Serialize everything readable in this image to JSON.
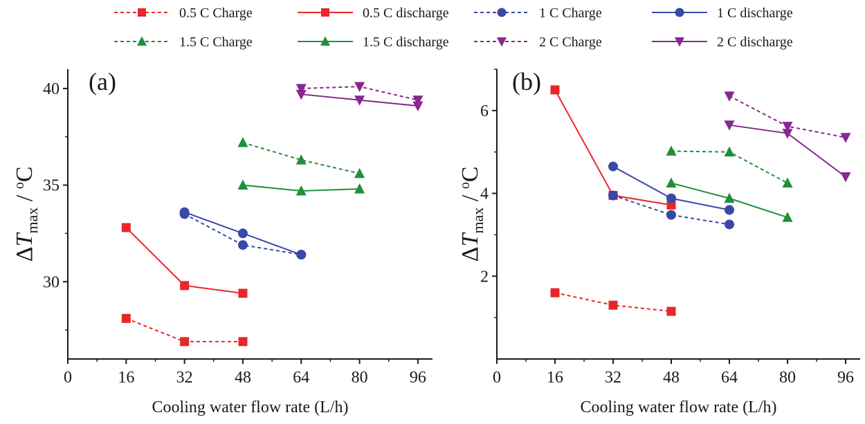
{
  "chart_data": [
    {
      "type": "line",
      "panel_label": "(a)",
      "xlabel": "Cooling water flow rate (L/h)",
      "ylabel": {
        "delta": "Δ",
        "symbol": "T",
        "subscript": "max",
        "sep": " / ",
        "degree": "o",
        "unit": "C"
      },
      "xlim": [
        0,
        100
      ],
      "ylim": [
        26,
        41
      ],
      "xticks": [
        0,
        16,
        32,
        48,
        64,
        80,
        96
      ],
      "xtick_labels": [
        "0",
        "16",
        "32",
        "48",
        "64",
        "80",
        "96"
      ],
      "yticks": [
        30,
        35,
        40
      ],
      "ytick_labels": [
        "30",
        "35",
        "40"
      ],
      "grid": false,
      "series": [
        {
          "name": "0.5 C Charge",
          "color": "#e8262b",
          "dash": true,
          "marker": "square",
          "x": [
            16,
            32,
            48
          ],
          "y": [
            28.1,
            26.9,
            26.9
          ]
        },
        {
          "name": "0.5 C discharge",
          "color": "#e8262b",
          "dash": false,
          "marker": "square",
          "x": [
            16,
            32,
            48
          ],
          "y": [
            32.8,
            29.8,
            29.4
          ]
        },
        {
          "name": "1 C Charge",
          "color": "#3a48a8",
          "dash": true,
          "marker": "circle",
          "x": [
            32,
            48,
            64
          ],
          "y": [
            33.5,
            31.9,
            31.4
          ]
        },
        {
          "name": "1 C discharge",
          "color": "#3a48a8",
          "dash": false,
          "marker": "circle",
          "x": [
            32,
            48,
            64
          ],
          "y": [
            33.6,
            32.5,
            31.4
          ]
        },
        {
          "name": "1.5 C Charge",
          "color": "#1f8f3a",
          "dash": true,
          "marker": "triangle-up",
          "x": [
            48,
            64,
            80
          ],
          "y": [
            37.2,
            36.3,
            35.6
          ]
        },
        {
          "name": "1.5 C discharge",
          "color": "#1f8f3a",
          "dash": false,
          "marker": "triangle-up",
          "x": [
            48,
            64,
            80
          ],
          "y": [
            35.0,
            34.7,
            34.8
          ]
        },
        {
          "name": "2 C Charge",
          "color": "#86288f",
          "dash": true,
          "marker": "triangle-down",
          "x": [
            64,
            80,
            96
          ],
          "y": [
            40.0,
            40.1,
            39.4
          ]
        },
        {
          "name": "2 C discharge",
          "color": "#86288f",
          "dash": false,
          "marker": "triangle-down",
          "x": [
            64,
            80,
            96
          ],
          "y": [
            39.7,
            39.4,
            39.1
          ]
        }
      ]
    },
    {
      "type": "line",
      "panel_label": "(b)",
      "xlabel": "Cooling water flow rate (L/h)",
      "ylabel": {
        "delta": "Δ",
        "symbol": "T",
        "subscript": "max",
        "sep": " / ",
        "degree": "o",
        "unit": "C"
      },
      "xlim": [
        0,
        100
      ],
      "ylim": [
        0,
        7
      ],
      "xticks": [
        0,
        16,
        32,
        48,
        64,
        80,
        96
      ],
      "xtick_labels": [
        "0",
        "16",
        "32",
        "48",
        "64",
        "80",
        "96"
      ],
      "yticks": [
        2,
        4,
        6
      ],
      "ytick_labels": [
        "2",
        "4",
        "6"
      ],
      "grid": false,
      "series": [
        {
          "name": "0.5 C Charge",
          "color": "#e8262b",
          "dash": true,
          "marker": "square",
          "x": [
            16,
            32,
            48
          ],
          "y": [
            1.6,
            1.3,
            1.15
          ]
        },
        {
          "name": "0.5 C discharge",
          "color": "#e8262b",
          "dash": false,
          "marker": "square",
          "x": [
            16,
            32,
            48
          ],
          "y": [
            6.5,
            3.95,
            3.72
          ]
        },
        {
          "name": "1 C Charge",
          "color": "#3a48a8",
          "dash": true,
          "marker": "circle",
          "x": [
            32,
            48,
            64
          ],
          "y": [
            3.95,
            3.48,
            3.25
          ]
        },
        {
          "name": "1 C discharge",
          "color": "#3a48a8",
          "dash": false,
          "marker": "circle",
          "x": [
            32,
            48,
            64
          ],
          "y": [
            4.65,
            3.88,
            3.6
          ]
        },
        {
          "name": "1.5 C Charge",
          "color": "#1f8f3a",
          "dash": true,
          "marker": "triangle-up",
          "x": [
            48,
            64,
            80
          ],
          "y": [
            5.02,
            5.0,
            4.25
          ]
        },
        {
          "name": "1.5 C discharge",
          "color": "#1f8f3a",
          "dash": false,
          "marker": "triangle-up",
          "x": [
            48,
            64,
            80
          ],
          "y": [
            4.25,
            3.88,
            3.42
          ]
        },
        {
          "name": "2 C Charge",
          "color": "#86288f",
          "dash": true,
          "marker": "triangle-down",
          "x": [
            64,
            80,
            96
          ],
          "y": [
            6.35,
            5.62,
            5.35
          ]
        },
        {
          "name": "2 C discharge",
          "color": "#86288f",
          "dash": false,
          "marker": "triangle-down",
          "x": [
            64,
            80,
            96
          ],
          "y": [
            5.65,
            5.45,
            4.4
          ]
        }
      ]
    }
  ],
  "legend": {
    "placement": "top",
    "entries": [
      {
        "label": "0.5 C Charge",
        "color": "#e8262b",
        "dash": true,
        "marker": "square"
      },
      {
        "label": "0.5 C discharge",
        "color": "#e8262b",
        "dash": false,
        "marker": "square"
      },
      {
        "label": "1 C Charge",
        "color": "#3a48a8",
        "dash": true,
        "marker": "circle"
      },
      {
        "label": "1 C discharge",
        "color": "#3a48a8",
        "dash": false,
        "marker": "circle"
      },
      {
        "label": "1.5 C Charge",
        "color": "#1f8f3a",
        "dash": true,
        "marker": "triangle-up"
      },
      {
        "label": "1.5 C discharge",
        "color": "#1f8f3a",
        "dash": false,
        "marker": "triangle-up"
      },
      {
        "label": "2 C Charge",
        "color": "#86288f",
        "dash": true,
        "marker": "triangle-down"
      },
      {
        "label": "2 C discharge",
        "color": "#86288f",
        "dash": false,
        "marker": "triangle-down"
      }
    ]
  }
}
